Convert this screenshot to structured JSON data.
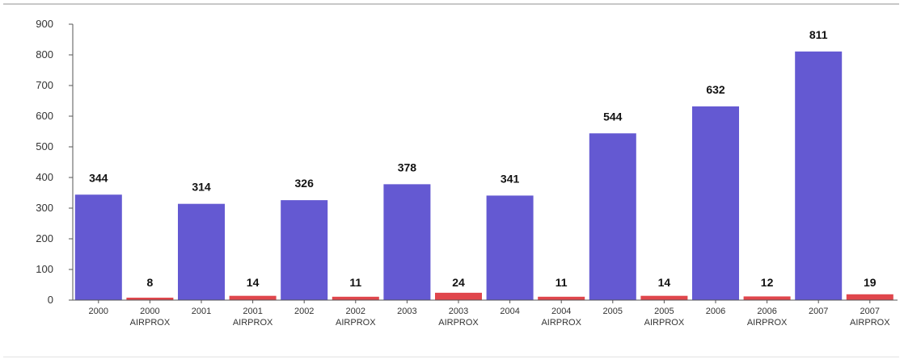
{
  "colors": {
    "main_bar": "#6459d2",
    "airprox_bar": "#e0464c",
    "axis": "#555555",
    "text": "#333333"
  },
  "chart_data": {
    "type": "bar",
    "title": "",
    "xlabel": "",
    "ylabel": "",
    "ylim": [
      0,
      900
    ],
    "yticks": [
      0,
      100,
      200,
      300,
      400,
      500,
      600,
      700,
      800,
      900
    ],
    "grid": false,
    "categories": [
      [
        "2000"
      ],
      [
        "2000",
        "AIRPROX"
      ],
      [
        "2001"
      ],
      [
        "2001",
        "AIRPROX"
      ],
      [
        "2002"
      ],
      [
        "2002",
        "AIRPROX"
      ],
      [
        "2003"
      ],
      [
        "2003",
        "AIRPROX"
      ],
      [
        "2004"
      ],
      [
        "2004",
        "AIRPROX"
      ],
      [
        "2005"
      ],
      [
        "2005",
        "AIRPROX"
      ],
      [
        "2006"
      ],
      [
        "2006",
        "AIRPROX"
      ],
      [
        "2007"
      ],
      [
        "2007",
        "AIRPROX"
      ]
    ],
    "values": [
      344,
      8,
      314,
      14,
      326,
      11,
      378,
      24,
      341,
      11,
      544,
      14,
      632,
      12,
      811,
      19
    ],
    "data_labels": [
      "344",
      "8",
      "314",
      "14",
      "326",
      "11",
      "378",
      "24",
      "341",
      "11",
      "544",
      "14",
      "632",
      "12",
      "811",
      "19"
    ],
    "bar_kind": [
      "main",
      "airprox",
      "main",
      "airprox",
      "main",
      "airprox",
      "main",
      "airprox",
      "main",
      "airprox",
      "main",
      "airprox",
      "main",
      "airprox",
      "main",
      "airprox"
    ]
  }
}
